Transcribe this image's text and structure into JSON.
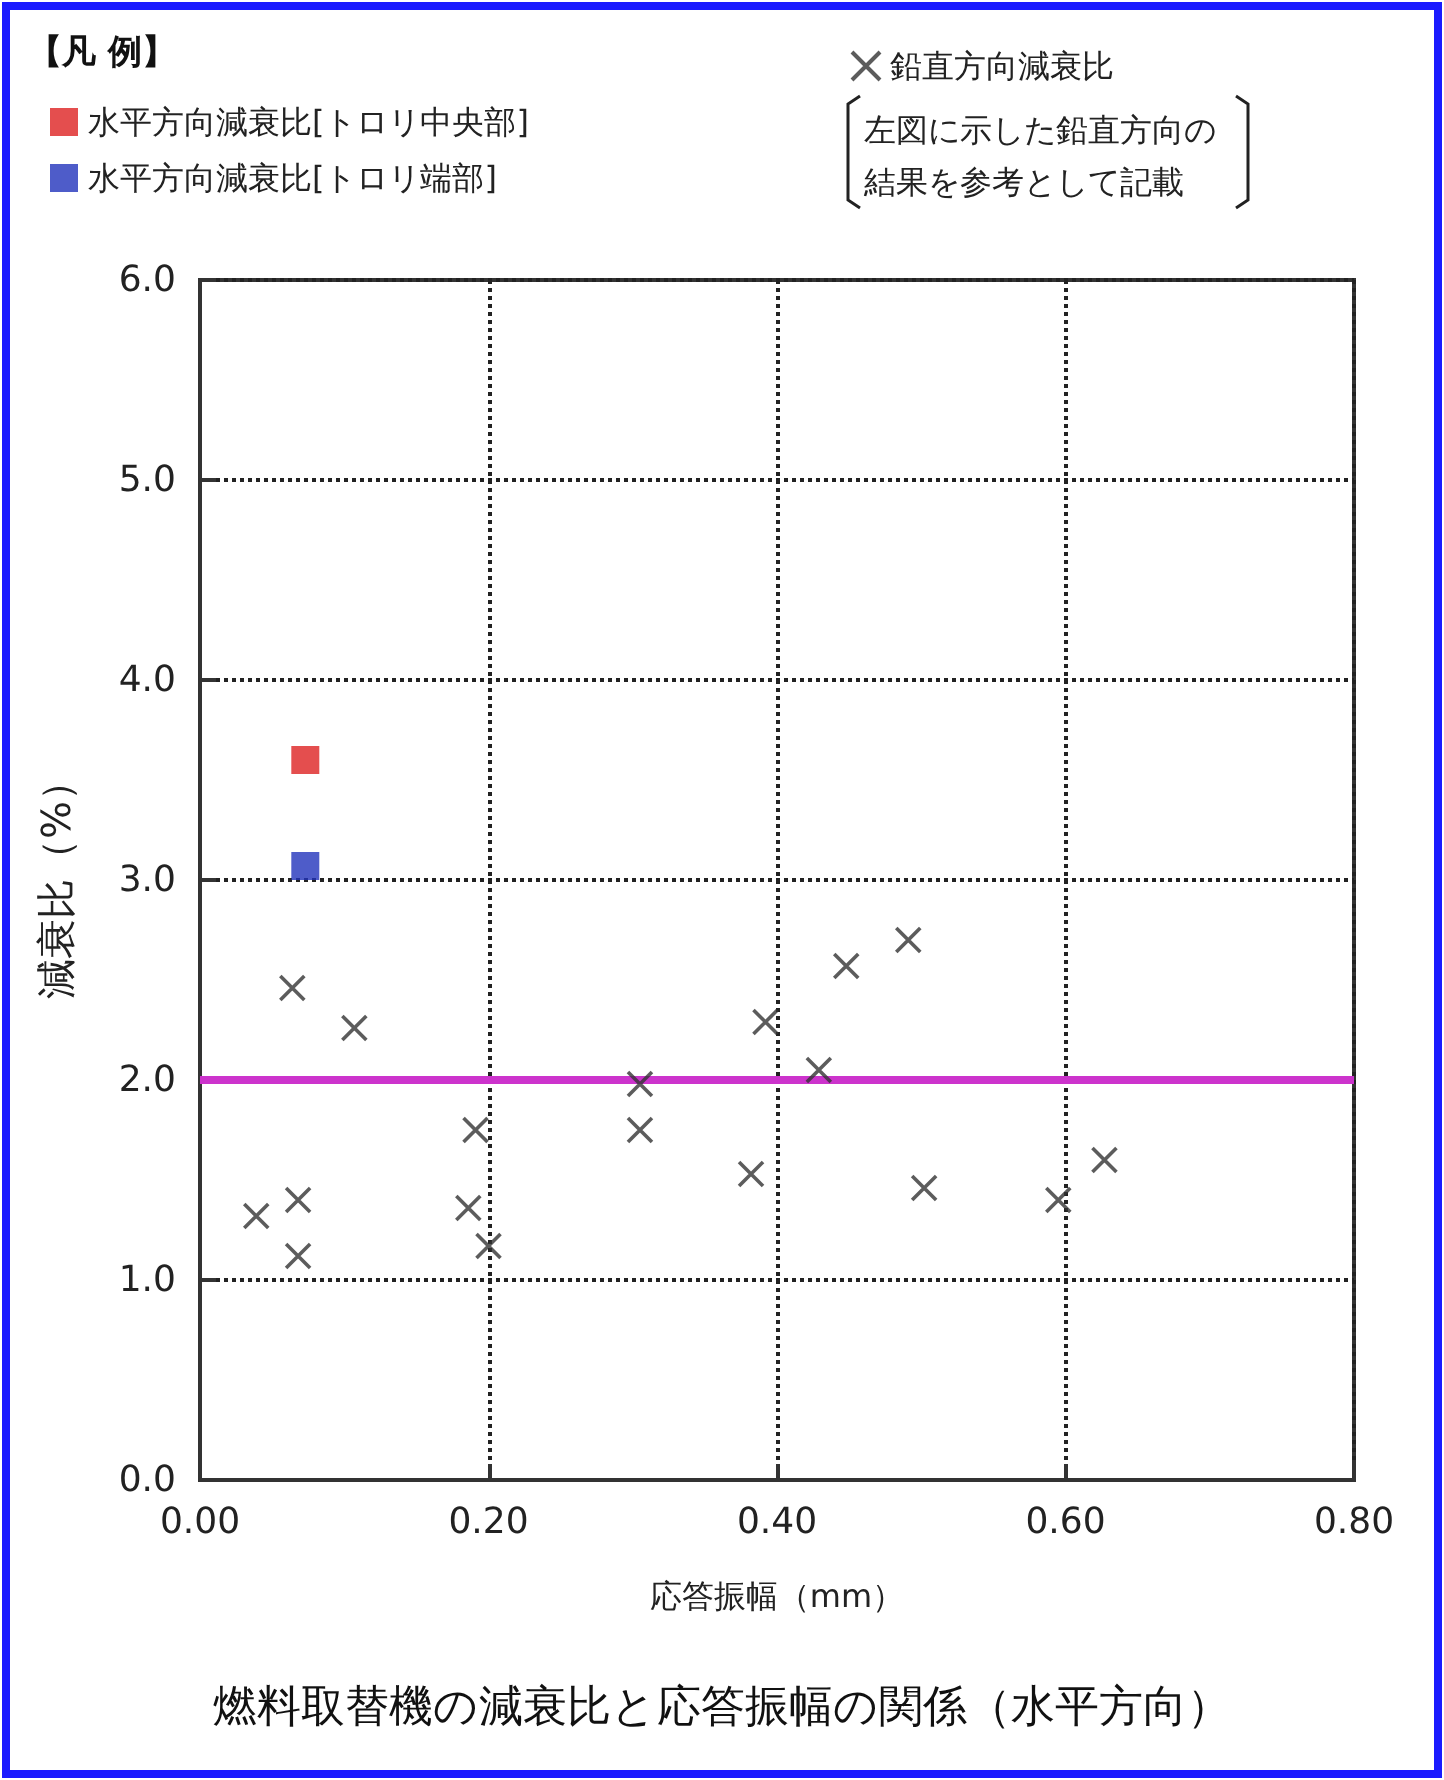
{
  "chart_data": {
    "type": "scatter",
    "title": "燃料取替機の減衰比と応答振幅の関係（水平方向）",
    "xlabel": "応答振幅（mm）",
    "ylabel": "減衰比（%）",
    "legend_title": "【凡 例】",
    "annotations": [
      "左図に示した鉛直方向の",
      "結果を参考として記載"
    ],
    "xlim": [
      0,
      0.8
    ],
    "xticks": [
      {
        "value": 0,
        "label": "0.00"
      },
      {
        "value": 0.2,
        "label": "0.20"
      },
      {
        "value": 0.4,
        "label": "0.40"
      },
      {
        "value": 0.6,
        "label": "0.60"
      },
      {
        "value": 0.8,
        "label": "0.80"
      }
    ],
    "ylim": [
      0,
      6
    ],
    "yticks": [
      {
        "value": 0,
        "label": "0.0"
      },
      {
        "value": 1,
        "label": "1.0"
      },
      {
        "value": 2,
        "label": "2.0"
      },
      {
        "value": 3,
        "label": "3.0"
      },
      {
        "value": 4,
        "label": "4.0"
      },
      {
        "value": 5,
        "label": "5.0"
      },
      {
        "value": 6,
        "label": "6.0"
      }
    ],
    "grid": true,
    "legend": "top",
    "ref_lines": [
      {
        "axis": "y",
        "value": 2.0,
        "label": null,
        "color": "#cc33cc",
        "line_style": "solid"
      }
    ],
    "series": [
      {
        "name": "水平方向減衰比[トロリ中央部]",
        "color": "#dd2222",
        "marker": "square",
        "x": [
          0.073
        ],
        "values": [
          3.6
        ]
      },
      {
        "name": "水平方向減衰比[トロリ端部]",
        "color": "#2233bb",
        "marker": "square",
        "x": [
          0.073
        ],
        "values": [
          3.07
        ]
      },
      {
        "name": "鉛直方向減衰比",
        "color": "#333333",
        "marker": "cross",
        "x": [
          0.064,
          0.107,
          0.039,
          0.068,
          0.068,
          0.191,
          0.186,
          0.2,
          0.305,
          0.305,
          0.392,
          0.382,
          0.429,
          0.448,
          0.491,
          0.502,
          0.595,
          0.627
        ],
        "values": [
          2.46,
          2.26,
          1.32,
          1.4,
          1.12,
          1.75,
          1.36,
          1.17,
          1.98,
          1.75,
          2.29,
          1.53,
          2.05,
          2.57,
          2.7,
          1.46,
          1.4,
          1.6
        ]
      }
    ]
  }
}
